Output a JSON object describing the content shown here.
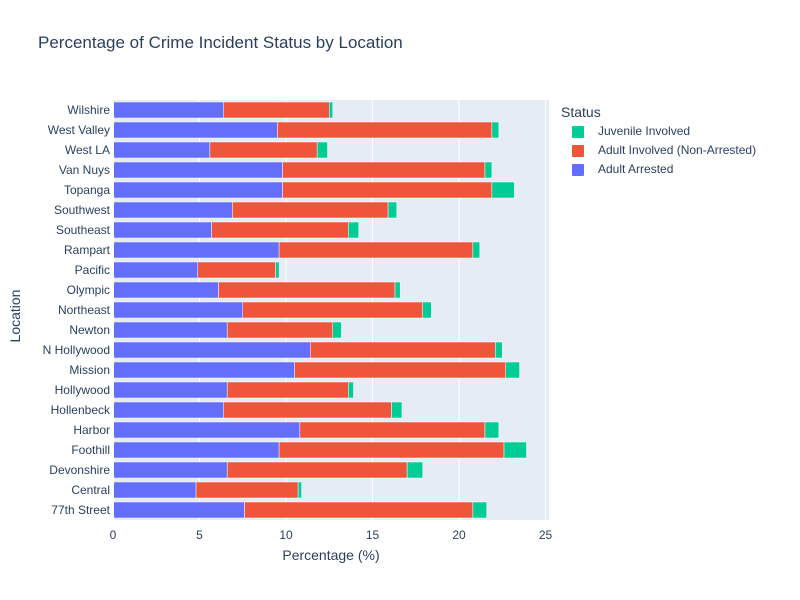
{
  "chart_data": {
    "type": "bar",
    "orientation": "horizontal",
    "barmode": "stack",
    "title": "Percentage of Crime Incident Status by Location",
    "xlabel": "Percentage (%)",
    "ylabel": "Location",
    "xlim": [
      0,
      25.2
    ],
    "xticks": [
      0,
      5,
      10,
      15,
      20,
      25
    ],
    "grid": true,
    "legend_title": "Status",
    "legend_position": "right",
    "categories": [
      "77th Street",
      "Central",
      "Devonshire",
      "Foothill",
      "Harbor",
      "Hollenbeck",
      "Hollywood",
      "Mission",
      "N Hollywood",
      "Newton",
      "Northeast",
      "Olympic",
      "Pacific",
      "Rampart",
      "Southeast",
      "Southwest",
      "Topanga",
      "Van Nuys",
      "West LA",
      "West Valley",
      "Wilshire"
    ],
    "series": [
      {
        "name": "Adult Arrested",
        "color": "#636efa",
        "values": [
          7.6,
          4.8,
          6.6,
          9.6,
          10.8,
          6.4,
          6.6,
          10.5,
          11.4,
          6.6,
          7.5,
          6.1,
          4.9,
          9.6,
          5.7,
          6.9,
          9.8,
          9.8,
          5.6,
          9.5,
          6.4
        ]
      },
      {
        "name": "Adult Involved (Non-Arrested)",
        "color": "#ef553b",
        "values": [
          13.2,
          5.9,
          10.4,
          13.0,
          10.7,
          9.7,
          7.0,
          12.2,
          10.7,
          6.1,
          10.4,
          10.2,
          4.5,
          11.2,
          7.9,
          9.0,
          12.1,
          11.7,
          6.2,
          12.4,
          6.1
        ]
      },
      {
        "name": "Juvenile Involved",
        "color": "#00cc96",
        "values": [
          0.8,
          0.2,
          0.9,
          1.3,
          0.8,
          0.6,
          0.3,
          0.8,
          0.4,
          0.5,
          0.5,
          0.3,
          0.2,
          0.4,
          0.6,
          0.5,
          1.3,
          0.4,
          0.6,
          0.4,
          0.2
        ]
      }
    ],
    "legend_order": [
      "Juvenile Involved",
      "Adult Involved (Non-Arrested)",
      "Adult Arrested"
    ]
  }
}
